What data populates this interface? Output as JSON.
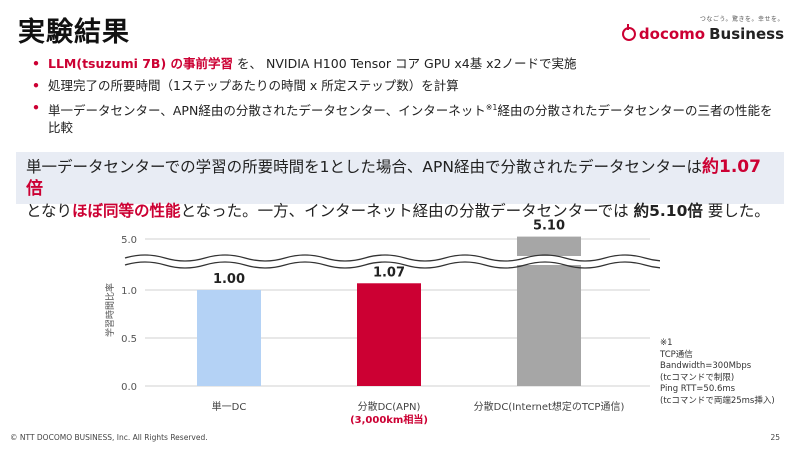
{
  "title": "実験結果",
  "logo": {
    "tagline": "つなごう。驚きを。幸せを。",
    "brand": "docomo",
    "division": "Business",
    "mark_color": "#cc0033"
  },
  "bullets": [
    {
      "highlight": "LLM(tsuzumi 7B) の事前学習",
      "rest": " を、 NVIDIA H100 Tensor コア GPU x4基 x2ノードで実施"
    },
    {
      "text": "処理完了の所要時間（1ステップあたりの時間 x 所定ステップ数）を計算"
    },
    {
      "pre": "単一データセンター、APN経由の分散されたデータセンター、インターネット",
      "sup": "※1",
      "post": "経由の分散されたデータセンターの三者の性能を比較"
    }
  ],
  "summary": {
    "p1": "単一データセンターでの学習の所要時間を1とした場合、APN経由で分散されたデータセンターは",
    "p1_em": "約1.07倍",
    "p2": "となり",
    "p2_em": "ほぼ同等の性能",
    "p3": "となった。一方、インターネット経由の分散データセンターでは ",
    "p3_bold": "約5.10倍",
    "p4": " 要した。"
  },
  "chart_data": {
    "type": "bar",
    "ylabel": "学習時間比率",
    "yticks": [
      "0.0",
      "0.5",
      "1.0",
      "5.0"
    ],
    "axis_break": true,
    "categories": [
      "単一DC",
      "分散DC(APN)",
      "分散DC(Internet想定のTCP通信)"
    ],
    "category_sublabels": [
      "",
      "(3,000km相当)",
      ""
    ],
    "values": [
      1.0,
      1.07,
      5.1
    ],
    "value_labels": [
      "1.00",
      "1.07",
      "5.10"
    ],
    "colors": [
      "#b4d2f5",
      "#cc0033",
      "#a6a6a6"
    ]
  },
  "note": "※1\nTCP通信\nBandwidth=300Mbps\n(tcコマンドで制限)\nPing RTT=50.6ms\n(tcコマンドで両端25ms挿入)",
  "footer": "© NTT DOCOMO BUSINESS, Inc. All Rights Reserved.",
  "page_number": "25"
}
